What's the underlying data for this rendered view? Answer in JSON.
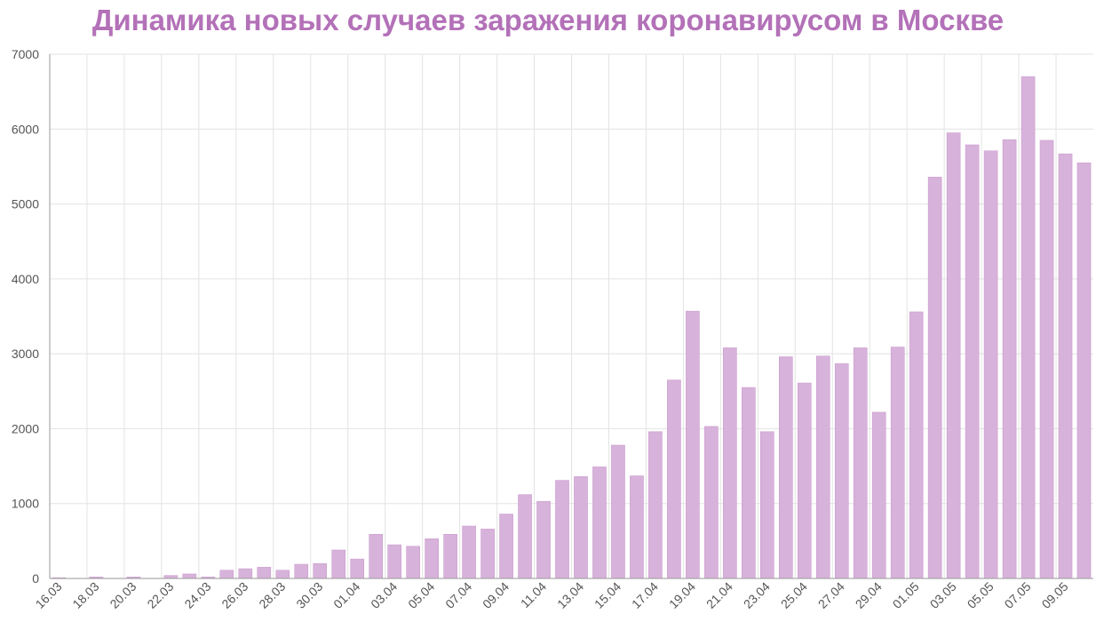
{
  "colors": {
    "title": "#b371b8",
    "bar": "#d7b2da",
    "bar_stroke": "#c897cc",
    "grid": "#e3e3e3",
    "axis": "#999999"
  },
  "chart_data": {
    "type": "bar",
    "title": "Динамика новых случаев заражения коронавирусом в Москве",
    "xlabel": "",
    "ylabel": "",
    "ylim": [
      0,
      7000
    ],
    "yticks": [
      0,
      1000,
      2000,
      3000,
      4000,
      5000,
      6000,
      7000
    ],
    "grid": true,
    "legend": "none",
    "categories": [
      "16.03",
      "17.03",
      "18.03",
      "19.03",
      "20.03",
      "21.03",
      "22.03",
      "23.03",
      "24.03",
      "25.03",
      "26.03",
      "27.03",
      "28.03",
      "29.03",
      "30.03",
      "31.03",
      "01.04",
      "02.04",
      "03.04",
      "04.04",
      "05.04",
      "06.04",
      "07.04",
      "08.04",
      "09.04",
      "10.04",
      "11.04",
      "12.04",
      "13.04",
      "14.04",
      "15.04",
      "16.04",
      "17.04",
      "18.04",
      "19.04",
      "20.04",
      "21.04",
      "22.04",
      "23.04",
      "24.04",
      "25.04",
      "26.04",
      "27.04",
      "28.04",
      "29.04",
      "30.04",
      "01.05",
      "02.05",
      "03.05",
      "04.05",
      "05.05",
      "06.05",
      "07.05",
      "08.05",
      "09.05",
      "10.05"
    ],
    "values": [
      10,
      0,
      20,
      0,
      20,
      0,
      40,
      60,
      20,
      110,
      130,
      150,
      110,
      190,
      200,
      380,
      260,
      590,
      450,
      430,
      530,
      590,
      700,
      660,
      860,
      1120,
      1030,
      1310,
      1360,
      1490,
      1780,
      1370,
      1960,
      2650,
      3570,
      2030,
      3080,
      2550,
      1960,
      2960,
      2610,
      2970,
      2870,
      3080,
      2220,
      3090,
      3560,
      5360,
      5950,
      5790,
      5710,
      5860,
      6700,
      5850,
      5670,
      5550
    ],
    "tick_labels": [
      "16.03",
      "18.03",
      "20.03",
      "22.03",
      "24.03",
      "26.03",
      "28.03",
      "30.03",
      "01.04",
      "03.04",
      "05.04",
      "07.04",
      "09.04",
      "11.04",
      "13.04",
      "15.04",
      "17.04",
      "19.04",
      "21.04",
      "23.04",
      "25.04",
      "27.04",
      "29.04",
      "01.05",
      "03.05",
      "05.05",
      "07.05",
      "09.05"
    ]
  }
}
